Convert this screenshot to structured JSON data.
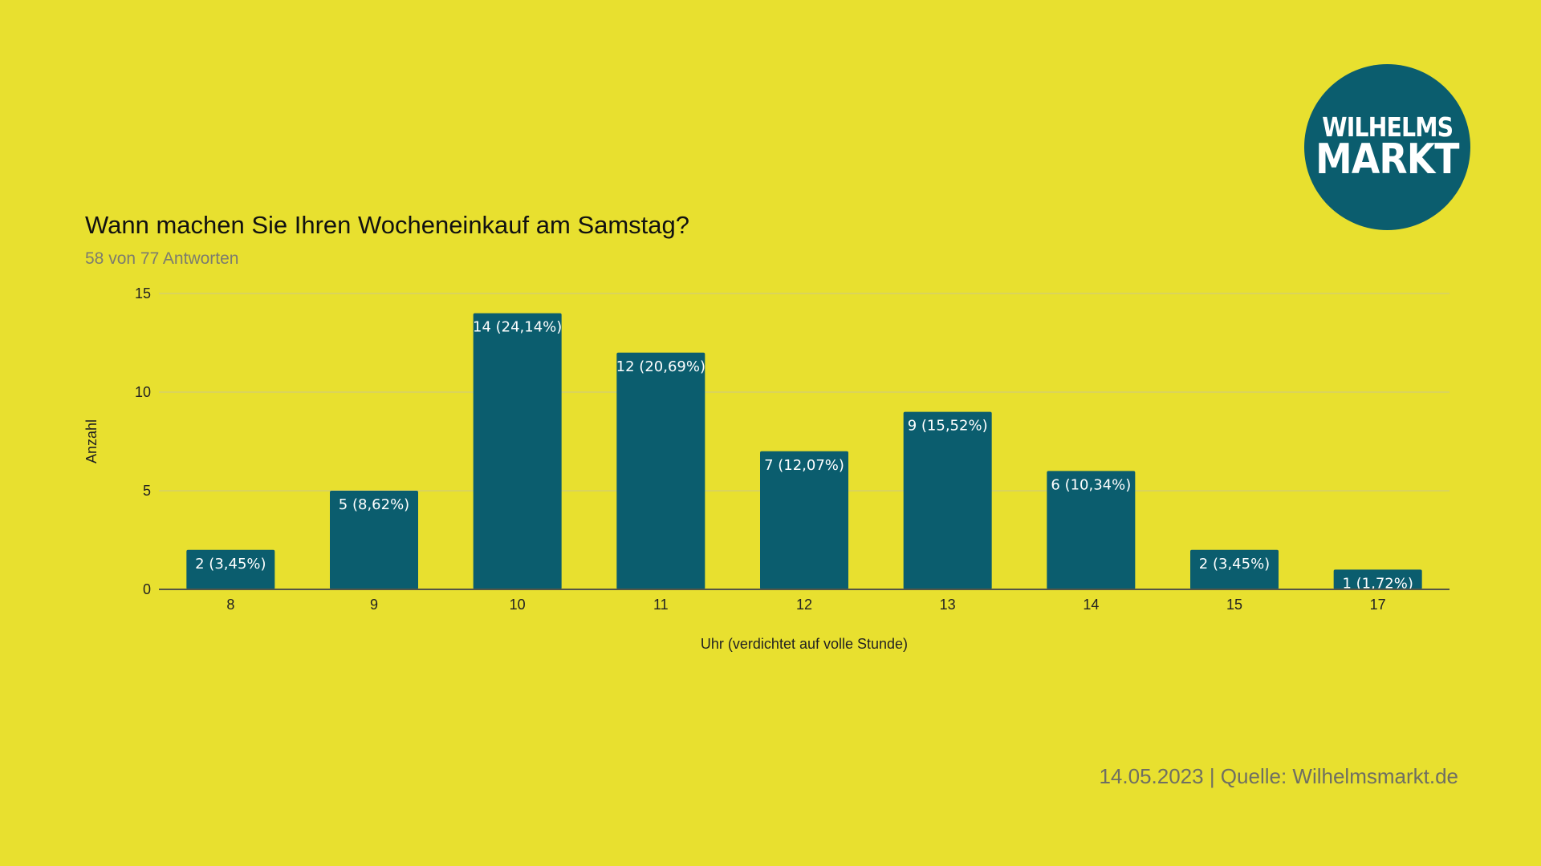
{
  "logo": {
    "line1": "WILHELMS",
    "line2": "MARKT"
  },
  "chart_data": {
    "type": "bar",
    "title": "Wann machen Sie Ihren Wocheneinkauf am Samstag?",
    "subtitle": "58 von 77 Antworten",
    "xlabel": "Uhr (verdichtet auf volle Stunde)",
    "ylabel": "Anzahl",
    "categories": [
      "8",
      "9",
      "10",
      "11",
      "12",
      "13",
      "14",
      "15",
      "17"
    ],
    "values": [
      2,
      5,
      14,
      12,
      7,
      9,
      6,
      2,
      1
    ],
    "data_labels": [
      "2 (3,45%)",
      "5 (8,62%)",
      "14 (24,14%)",
      "12 (20,69%)",
      "7 (12,07%)",
      "9 (15,52%)",
      "6 (10,34%)",
      "2 (3,45%)",
      "1 (1,72%)"
    ],
    "ylim": [
      0,
      15
    ],
    "yticks": [
      0,
      5,
      10,
      15
    ],
    "grid": true,
    "bar_color": "#0b5d6e",
    "background_color": "#e8e02f"
  },
  "footer": {
    "text": "14.05.2023 | Quelle: Wilhelmsmarkt.de"
  }
}
